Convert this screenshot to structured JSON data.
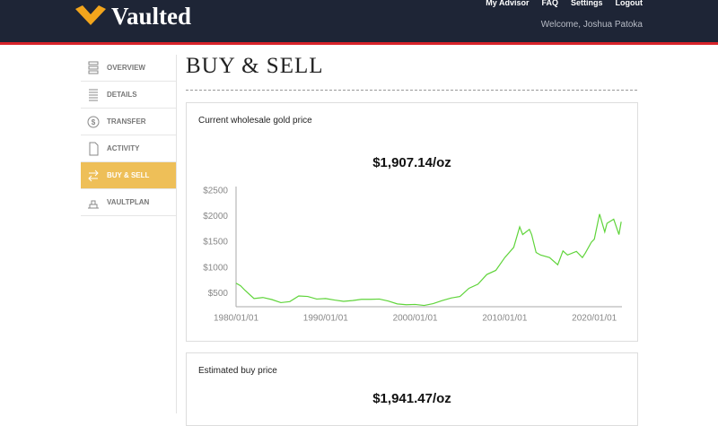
{
  "header": {
    "brand": "Vaulted",
    "nav": [
      "My Advisor",
      "FAQ",
      "Settings",
      "Logout"
    ],
    "welcome": "Welcome, Joshua Patoka"
  },
  "sidebar": {
    "items": [
      "OVERVIEW",
      "DETAILS",
      "TRANSFER",
      "ACTIVITY",
      "BUY & SELL",
      "VAULTPLAN"
    ],
    "active": 4
  },
  "page_title": "BUY & SELL",
  "cards": [
    {
      "title": "Current wholesale gold price",
      "price": "$1,907.14/oz"
    },
    {
      "title": "Estimated buy price",
      "price": "$1,941.47/oz"
    }
  ],
  "chart_data": {
    "type": "line",
    "color": "#5fd43a",
    "x": [
      "1980/01/01",
      "1980/07/01",
      "1981/01/01",
      "1982/01/01",
      "1983/01/01",
      "1984/01/01",
      "1985/01/01",
      "1986/01/01",
      "1987/01/01",
      "1988/01/01",
      "1989/01/01",
      "1990/01/01",
      "1991/01/01",
      "1992/01/01",
      "1993/01/01",
      "1994/01/01",
      "1995/01/01",
      "1996/01/01",
      "1997/01/01",
      "1998/01/01",
      "1999/01/01",
      "2000/01/01",
      "2001/01/01",
      "2002/01/01",
      "2003/01/01",
      "2004/01/01",
      "2005/01/01",
      "2006/01/01",
      "2007/01/01",
      "2008/01/01",
      "2009/01/01",
      "2010/01/01",
      "2011/01/01",
      "2011/09/01",
      "2012/01/01",
      "2012/10/01",
      "2013/01/01",
      "2013/07/01",
      "2014/01/01",
      "2015/01/01",
      "2015/12/01",
      "2016/07/01",
      "2017/01/01",
      "2018/01/01",
      "2018/09/01",
      "2019/01/01",
      "2019/09/01",
      "2020/01/01",
      "2020/08/01",
      "2021/03/01",
      "2021/06/01",
      "2022/03/01",
      "2022/10/01",
      "2023/01/01"
    ],
    "values": [
      700,
      650,
      560,
      400,
      420,
      380,
      320,
      340,
      450,
      440,
      390,
      400,
      370,
      345,
      360,
      385,
      385,
      390,
      350,
      295,
      280,
      285,
      265,
      300,
      360,
      410,
      440,
      600,
      680,
      870,
      950,
      1200,
      1400,
      1800,
      1650,
      1750,
      1650,
      1300,
      1250,
      1200,
      1060,
      1330,
      1250,
      1320,
      1200,
      1290,
      1500,
      1560,
      2050,
      1700,
      1870,
      1950,
      1650,
      1900
    ],
    "xlim": [
      "1980/01/01",
      "2023/02/01"
    ],
    "xticks": [
      {
        "value": "1980/01/01",
        "label": "1980/01/01"
      },
      {
        "value": "1990/01/01",
        "label": "1990/01/01"
      },
      {
        "value": "2000/01/01",
        "label": "2000/01/01"
      },
      {
        "value": "2010/01/01",
        "label": "2010/01/01"
      },
      {
        "value": "2020/01/01",
        "label": "2020/01/01"
      }
    ],
    "ylim": [
      240,
      2500
    ],
    "yticks": [
      {
        "value": 500,
        "label": "$500"
      },
      {
        "value": 1000,
        "label": "$1000"
      },
      {
        "value": 1500,
        "label": "$1500"
      },
      {
        "value": 2000,
        "label": "$2000"
      },
      {
        "value": 2500,
        "label": "$2500"
      }
    ]
  }
}
